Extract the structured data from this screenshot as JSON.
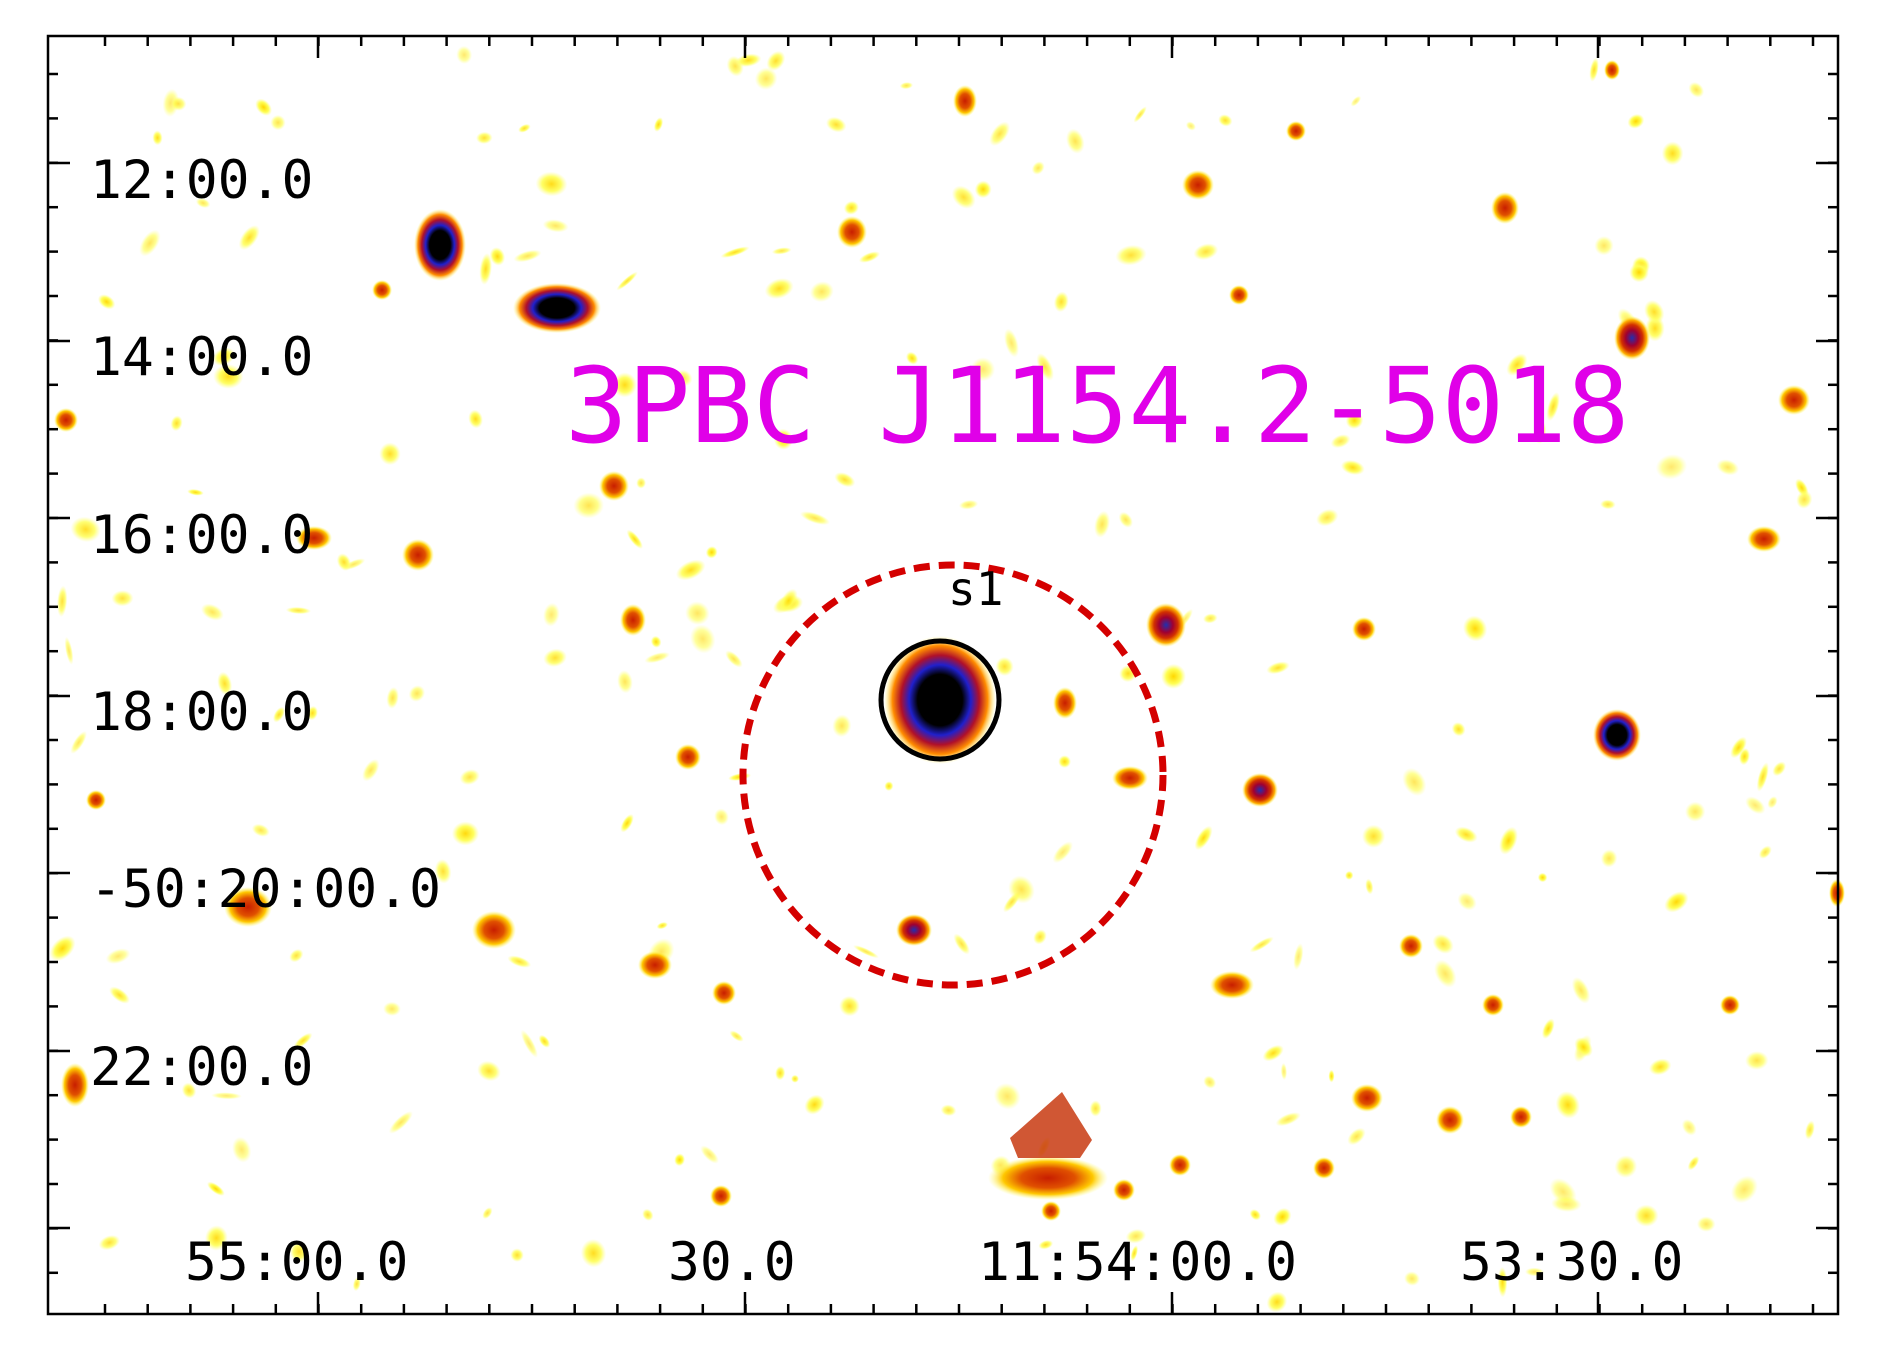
{
  "title": "3PBC J1154.2-5018",
  "colors": {
    "title": "#e000e8",
    "error_circle": "#d40000",
    "source_circle": "#000000",
    "background": "#ffffff",
    "frame": "#000000",
    "colormap": [
      "#ffff66",
      "#ffd700",
      "#ff8c00",
      "#c81e00",
      "#a00030",
      "#2020cc",
      "#000000"
    ]
  },
  "image": {
    "colormap": "heat",
    "background": "white"
  },
  "axes": {
    "dec_labels": [
      "12:00.0",
      "14:00.0",
      "16:00.0",
      "18:00.0",
      "-50:20:00.0",
      "22:00.0"
    ],
    "ra_labels": [
      "55:00.0",
      "30.0",
      "11:54:00.0",
      "53:30.0"
    ]
  },
  "regions": {
    "error_circle": {
      "style": "dashed",
      "color": "red"
    },
    "source": {
      "label": "s1",
      "style": "solid",
      "color": "black"
    }
  }
}
